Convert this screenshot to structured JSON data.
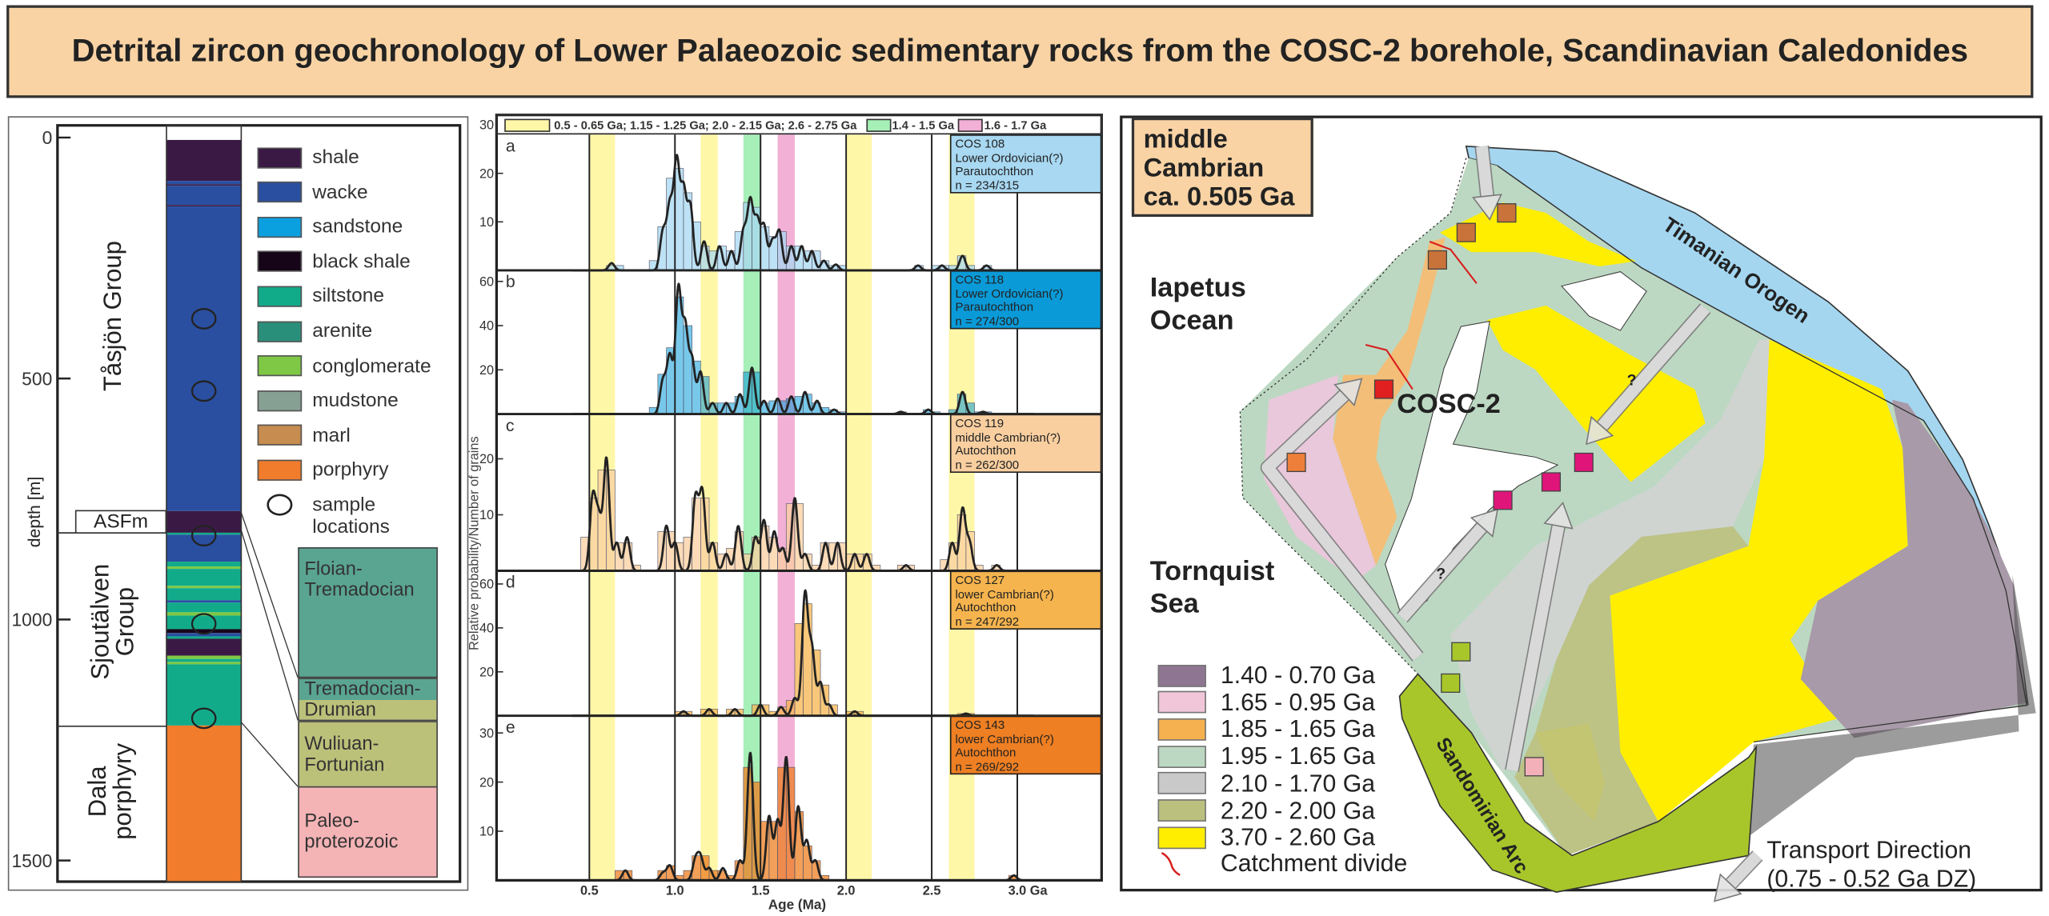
{
  "title": "Detrital zircon geochronology of Lower Palaeozoic sedimentary rocks from the COSC-2 borehole, Scandinavian Caledonides",
  "column": {
    "axis_label": "depth [m]",
    "depth_ticks": [
      {
        "value": 0,
        "label": "0"
      },
      {
        "value": 500,
        "label": "500"
      },
      {
        "value": 1000,
        "label": "1000"
      },
      {
        "value": 1500,
        "label": "1500"
      }
    ],
    "depth_range": [
      -25,
      1545
    ],
    "groups": [
      {
        "lines": [
          "Tåsjön Group"
        ]
      },
      {
        "lines": [
          "Sjoutälven",
          "Group"
        ]
      },
      {
        "lines": [
          "Dala",
          "porphyry"
        ]
      }
    ],
    "formation_box": "ASFm",
    "layers": [
      {
        "from": 5,
        "to": 90,
        "lith": "shale"
      },
      {
        "from": 90,
        "to": 97,
        "lith": "wacke"
      },
      {
        "from": 97,
        "to": 100,
        "lith": "shale"
      },
      {
        "from": 100,
        "to": 140,
        "lith": "wacke"
      },
      {
        "from": 140,
        "to": 143,
        "lith": "shale"
      },
      {
        "from": 143,
        "to": 775,
        "lith": "wacke"
      },
      {
        "from": 775,
        "to": 820,
        "lith": "shale"
      },
      {
        "from": 820,
        "to": 824,
        "lith": "siltstone"
      },
      {
        "from": 824,
        "to": 880,
        "lith": "wacke"
      },
      {
        "from": 880,
        "to": 890,
        "lith": "siltstone"
      },
      {
        "from": 890,
        "to": 895,
        "lith": "conglomerate"
      },
      {
        "from": 895,
        "to": 930,
        "lith": "siltstone"
      },
      {
        "from": 930,
        "to": 935,
        "lith": "conglomerate"
      },
      {
        "from": 935,
        "to": 960,
        "lith": "siltstone"
      },
      {
        "from": 960,
        "to": 965,
        "lith": "wacke"
      },
      {
        "from": 965,
        "to": 985,
        "lith": "siltstone"
      },
      {
        "from": 985,
        "to": 992,
        "lith": "conglomerate"
      },
      {
        "from": 992,
        "to": 1020,
        "lith": "siltstone"
      },
      {
        "from": 1020,
        "to": 1028,
        "lith": "black shale"
      },
      {
        "from": 1028,
        "to": 1035,
        "lith": "wacke"
      },
      {
        "from": 1035,
        "to": 1040,
        "lith": "siltstone"
      },
      {
        "from": 1040,
        "to": 1075,
        "lith": "shale"
      },
      {
        "from": 1075,
        "to": 1082,
        "lith": "conglomerate"
      },
      {
        "from": 1082,
        "to": 1088,
        "lith": "siltstone"
      },
      {
        "from": 1088,
        "to": 1093,
        "lith": "conglomerate"
      },
      {
        "from": 1093,
        "to": 1220,
        "lith": "siltstone"
      },
      {
        "from": 1220,
        "to": 1545,
        "lith": "porphyry"
      }
    ],
    "sample_depths": [
      376,
      526,
      826,
      1009,
      1205
    ],
    "legend": [
      {
        "label": "shale",
        "color": "#3a1a45"
      },
      {
        "label": "wacke",
        "color": "#2a4fa0"
      },
      {
        "label": "sandstone",
        "color": "#0aa0e0"
      },
      {
        "label": "black shale",
        "color": "#160418"
      },
      {
        "label": "siltstone",
        "color": "#12ab8a"
      },
      {
        "label": "arenite",
        "color": "#2a8f7a"
      },
      {
        "label": "conglomerate",
        "color": "#7ec845"
      },
      {
        "label": "mudstone",
        "color": "#87a094"
      },
      {
        "label": "marl",
        "color": "#c78c4f"
      },
      {
        "label": "porphyry",
        "color": "#f07c2c"
      }
    ],
    "sample_legend": [
      "sample",
      "locations"
    ],
    "stages": [
      {
        "lines": [
          "Floian-",
          "Tremadocian"
        ],
        "color": "#5aa592"
      },
      {
        "lines": [
          "Tremadocian-",
          "Drumian"
        ],
        "color": "#bcc17a"
      },
      {
        "lines": [
          "Wuliuan-",
          "Fortunian"
        ],
        "color": "#bcc17a"
      },
      {
        "lines": [
          "Paleo-",
          "proterozoic"
        ],
        "color": "#f4b3b5"
      }
    ]
  },
  "chart_data": {
    "type": "bar",
    "title": "",
    "xlabel": "Age (Ma)",
    "ylabel": "Relative probability/Number of grains",
    "xlim": [
      0.0,
      3.5
    ],
    "x_ticks": [
      {
        "value": 0.5,
        "label": "0.5"
      },
      {
        "value": 1.0,
        "label": "1.0"
      },
      {
        "value": 1.5,
        "label": "1.5"
      },
      {
        "value": 2.0,
        "label": "2.0"
      },
      {
        "value": 2.5,
        "label": "2.5"
      },
      {
        "value": 3.0,
        "label": "3.0 Ga"
      }
    ],
    "bin_width_ga": 0.05,
    "legend": [
      {
        "label": "0.5 - 0.65 Ga; 1.15 - 1.25 Ga; 2.0 - 2.15 Ga; 2.6 - 2.75 Ga",
        "color": "#fff7a8"
      },
      {
        "label": "1.4 - 1.5 Ga",
        "color": "#a6f0b8"
      },
      {
        "label": "1.6 - 1.7 Ga",
        "color": "#f2b0d6"
      }
    ],
    "bands": [
      {
        "range": [
          0.5,
          0.65
        ],
        "color": "#fff7a8"
      },
      {
        "range": [
          1.15,
          1.25
        ],
        "color": "#fff7a8"
      },
      {
        "range": [
          2.0,
          2.15
        ],
        "color": "#fff7a8"
      },
      {
        "range": [
          2.6,
          2.75
        ],
        "color": "#fff7a8"
      },
      {
        "range": [
          1.4,
          1.5
        ],
        "color": "#a6f0b8"
      },
      {
        "range": [
          1.6,
          1.7
        ],
        "color": "#f2b0d6"
      }
    ],
    "series": [
      {
        "panel": "a",
        "lines": [
          "COS 108",
          "Lower Ordovician(?)",
          "Parautochthon",
          "n = 234/315"
        ],
        "color": "#a8d8f2",
        "ymax": 28,
        "y_ticks": [
          10,
          20,
          30
        ],
        "peaks": [
          [
            0.63,
            1.5
          ],
          [
            0.93,
            8
          ],
          [
            0.97,
            13
          ],
          [
            1.01,
            22
          ],
          [
            1.05,
            16
          ],
          [
            1.09,
            13
          ],
          [
            1.17,
            6
          ],
          [
            1.26,
            5
          ],
          [
            1.33,
            4
          ],
          [
            1.4,
            8
          ],
          [
            1.44,
            14
          ],
          [
            1.48,
            10
          ],
          [
            1.52,
            9
          ],
          [
            1.57,
            6
          ],
          [
            1.61,
            8
          ],
          [
            1.68,
            5
          ],
          [
            1.74,
            5
          ],
          [
            1.8,
            4
          ],
          [
            1.87,
            2
          ],
          [
            1.94,
            1.2
          ],
          [
            2.42,
            1
          ],
          [
            2.56,
            1
          ],
          [
            2.68,
            3
          ],
          [
            2.82,
            1
          ]
        ]
      },
      {
        "panel": "b",
        "lines": [
          "COS 118",
          "Lower Ordovician(?)",
          "Parautochthon",
          "n = 274/300"
        ],
        "color": "#0a9ad8",
        "ymax": 65,
        "y_ticks": [
          20,
          40,
          60
        ],
        "peaks": [
          [
            0.93,
            15
          ],
          [
            0.97,
            26
          ],
          [
            1.02,
            56
          ],
          [
            1.06,
            38
          ],
          [
            1.1,
            24
          ],
          [
            1.15,
            19
          ],
          [
            1.22,
            5
          ],
          [
            1.3,
            5
          ],
          [
            1.38,
            9
          ],
          [
            1.45,
            21
          ],
          [
            1.52,
            6
          ],
          [
            1.6,
            7
          ],
          [
            1.68,
            8
          ],
          [
            1.76,
            10
          ],
          [
            1.83,
            6
          ],
          [
            1.93,
            2
          ],
          [
            2.32,
            1
          ],
          [
            2.48,
            2
          ],
          [
            2.68,
            10
          ],
          [
            2.8,
            1
          ]
        ]
      },
      {
        "panel": "c",
        "lines": [
          "COS 119",
          "middle Cambrian(?)",
          "Autochthon",
          "n = 262/300"
        ],
        "color": "#f9cfa0",
        "ymax": 28,
        "y_ticks": [
          10,
          20
        ],
        "peaks": [
          [
            0.52,
            13
          ],
          [
            0.555,
            9
          ],
          [
            0.6,
            20
          ],
          [
            0.66,
            5
          ],
          [
            0.72,
            6
          ],
          [
            0.95,
            8
          ],
          [
            1.0,
            5
          ],
          [
            1.12,
            13
          ],
          [
            1.16,
            14
          ],
          [
            1.22,
            5
          ],
          [
            1.3,
            3
          ],
          [
            1.37,
            8
          ],
          [
            1.47,
            6
          ],
          [
            1.52,
            9
          ],
          [
            1.58,
            7
          ],
          [
            1.63,
            4
          ],
          [
            1.7,
            13
          ],
          [
            1.76,
            3
          ],
          [
            1.88,
            5
          ],
          [
            1.95,
            5
          ],
          [
            2.05,
            3
          ],
          [
            2.12,
            3
          ],
          [
            2.35,
            1
          ],
          [
            2.62,
            5
          ],
          [
            2.68,
            11
          ],
          [
            2.72,
            5
          ],
          [
            2.88,
            1
          ]
        ]
      },
      {
        "panel": "d",
        "lines": [
          "COS 127",
          "lower Cambrian(?)",
          "Autochthon",
          "n = 247/292"
        ],
        "color": "#f6b44e",
        "ymax": 66,
        "y_ticks": [
          20,
          40,
          60
        ],
        "peaks": [
          [
            1.05,
            2
          ],
          [
            1.2,
            3
          ],
          [
            1.35,
            3
          ],
          [
            1.5,
            5
          ],
          [
            1.62,
            4
          ],
          [
            1.7,
            8
          ],
          [
            1.76,
            55
          ],
          [
            1.8,
            30
          ],
          [
            1.85,
            15
          ],
          [
            1.9,
            5
          ],
          [
            2.05,
            2
          ],
          [
            2.7,
            1
          ]
        ]
      },
      {
        "panel": "e",
        "lines": [
          "COS 143",
          "lower Cambrian(?)",
          "Autochthon",
          "n = 269/292"
        ],
        "color": "#ee7f22",
        "ymax": 33.5,
        "y_ticks": [
          10,
          20,
          30
        ],
        "peaks": [
          [
            0.71,
            2
          ],
          [
            0.93,
            1.5
          ],
          [
            0.97,
            3
          ],
          [
            1.12,
            4
          ],
          [
            1.15,
            4.5
          ],
          [
            1.2,
            2.5
          ],
          [
            1.28,
            2.5
          ],
          [
            1.38,
            4
          ],
          [
            1.44,
            26
          ],
          [
            1.55,
            13
          ],
          [
            1.6,
            12
          ],
          [
            1.65,
            25
          ],
          [
            1.72,
            15
          ],
          [
            1.77,
            8
          ],
          [
            1.82,
            4
          ],
          [
            2.98,
            1
          ]
        ]
      }
    ]
  },
  "map": {
    "age_box": [
      "middle",
      "Cambrian",
      "ca. 0.505 Ga"
    ],
    "labels": {
      "iapetus": [
        "Iapetus",
        "Ocean"
      ],
      "tornquist": [
        "Tornquist",
        "Sea"
      ],
      "cosc": "COSC-2",
      "timanian": "Timanian Orogen",
      "sandomirian": "Sandomirian Arc",
      "question": "?",
      "transport": [
        "Transport Direction",
        "(0.75 - 0.52 Ga DZ)"
      ]
    },
    "legend": [
      {
        "label": "1.40 - 0.70 Ga",
        "color": "#8e7591"
      },
      {
        "label": "1.65 - 0.95 Ga",
        "color": "#f0c6d8"
      },
      {
        "label": "1.85 - 1.65 Ga",
        "color": "#f5b04f"
      },
      {
        "label": "1.95 - 1.65 Ga",
        "color": "#bcd8c2"
      },
      {
        "label": "2.10 - 1.70 Ga",
        "color": "#c9c9c9"
      },
      {
        "label": "2.20 - 2.00 Ga",
        "color": "#bcc07e"
      },
      {
        "label": "3.70 - 2.60 Ga",
        "color": "#ffee00"
      }
    ],
    "catchment_label": "Catchment divide",
    "colors": {
      "ocean_band": "#a4d6f0",
      "arc": "#a8c62a",
      "catchment": "#d81e1e"
    }
  }
}
